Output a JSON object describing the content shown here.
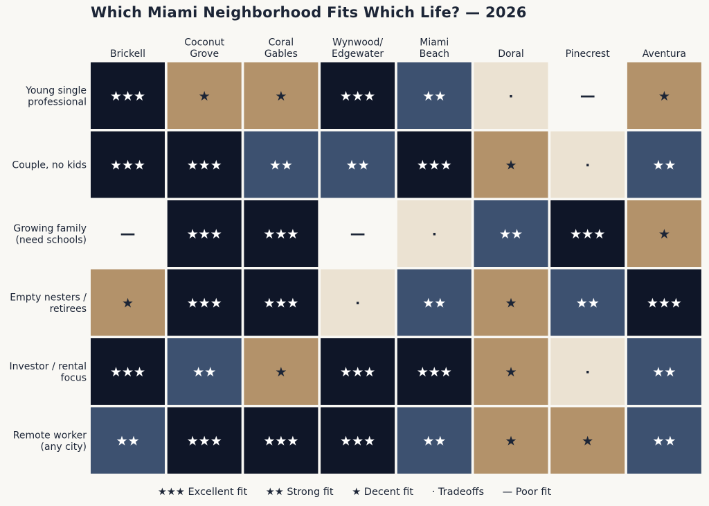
{
  "chart_data": {
    "type": "heatmap",
    "title": "Which Miami Neighborhood Fits Which Life? — 2026",
    "columns": [
      [
        "Brickell"
      ],
      [
        "Coconut",
        "Grove"
      ],
      [
        "Coral",
        "Gables"
      ],
      [
        "Wynwood/",
        "Edgewater"
      ],
      [
        "Miami",
        "Beach"
      ],
      [
        "Doral"
      ],
      [
        "Pinecrest"
      ],
      [
        "Aventura"
      ]
    ],
    "rows": [
      [
        "Young single",
        "professional"
      ],
      [
        "Couple, no kids"
      ],
      [
        "Growing family",
        "(need schools)"
      ],
      [
        "Empty nesters /",
        "retirees"
      ],
      [
        "Investor / rental",
        "focus"
      ],
      [
        "Remote worker",
        "(any city)"
      ]
    ],
    "scores": [
      [
        3,
        1,
        1,
        3,
        2,
        0,
        -1,
        1
      ],
      [
        3,
        3,
        2,
        2,
        3,
        1,
        0,
        2
      ],
      [
        -1,
        3,
        3,
        -1,
        0,
        2,
        3,
        1
      ],
      [
        1,
        3,
        3,
        0,
        2,
        1,
        2,
        3
      ],
      [
        3,
        2,
        1,
        3,
        3,
        1,
        0,
        2
      ],
      [
        2,
        3,
        3,
        3,
        2,
        1,
        1,
        2
      ]
    ],
    "levels": [
      {
        "score": 3,
        "symbol": "★★★",
        "label": "Excellent fit",
        "fill": "#0f1628",
        "text_color": "#ffffff"
      },
      {
        "score": 2,
        "symbol": "★★",
        "label": "Strong fit",
        "fill": "#3d5170",
        "text_color": "#ffffff"
      },
      {
        "score": 1,
        "symbol": "★",
        "label": "Decent fit",
        "fill": "#b3926a",
        "text_color": "#1c2536"
      },
      {
        "score": 0,
        "symbol": "·",
        "label": "Tradeoffs",
        "fill": "#ebe2d2",
        "text_color": "#1c2536"
      },
      {
        "score": -1,
        "symbol": "—",
        "label": "Poor fit",
        "fill": "#f9f8f4",
        "text_color": "#1c2536"
      }
    ],
    "legend": [
      "★★★ Excellent fit",
      "★★ Strong fit",
      "★ Decent fit",
      "· Tradeoffs",
      "— Poor fit"
    ],
    "legend_position": "bottom",
    "grid": false
  }
}
